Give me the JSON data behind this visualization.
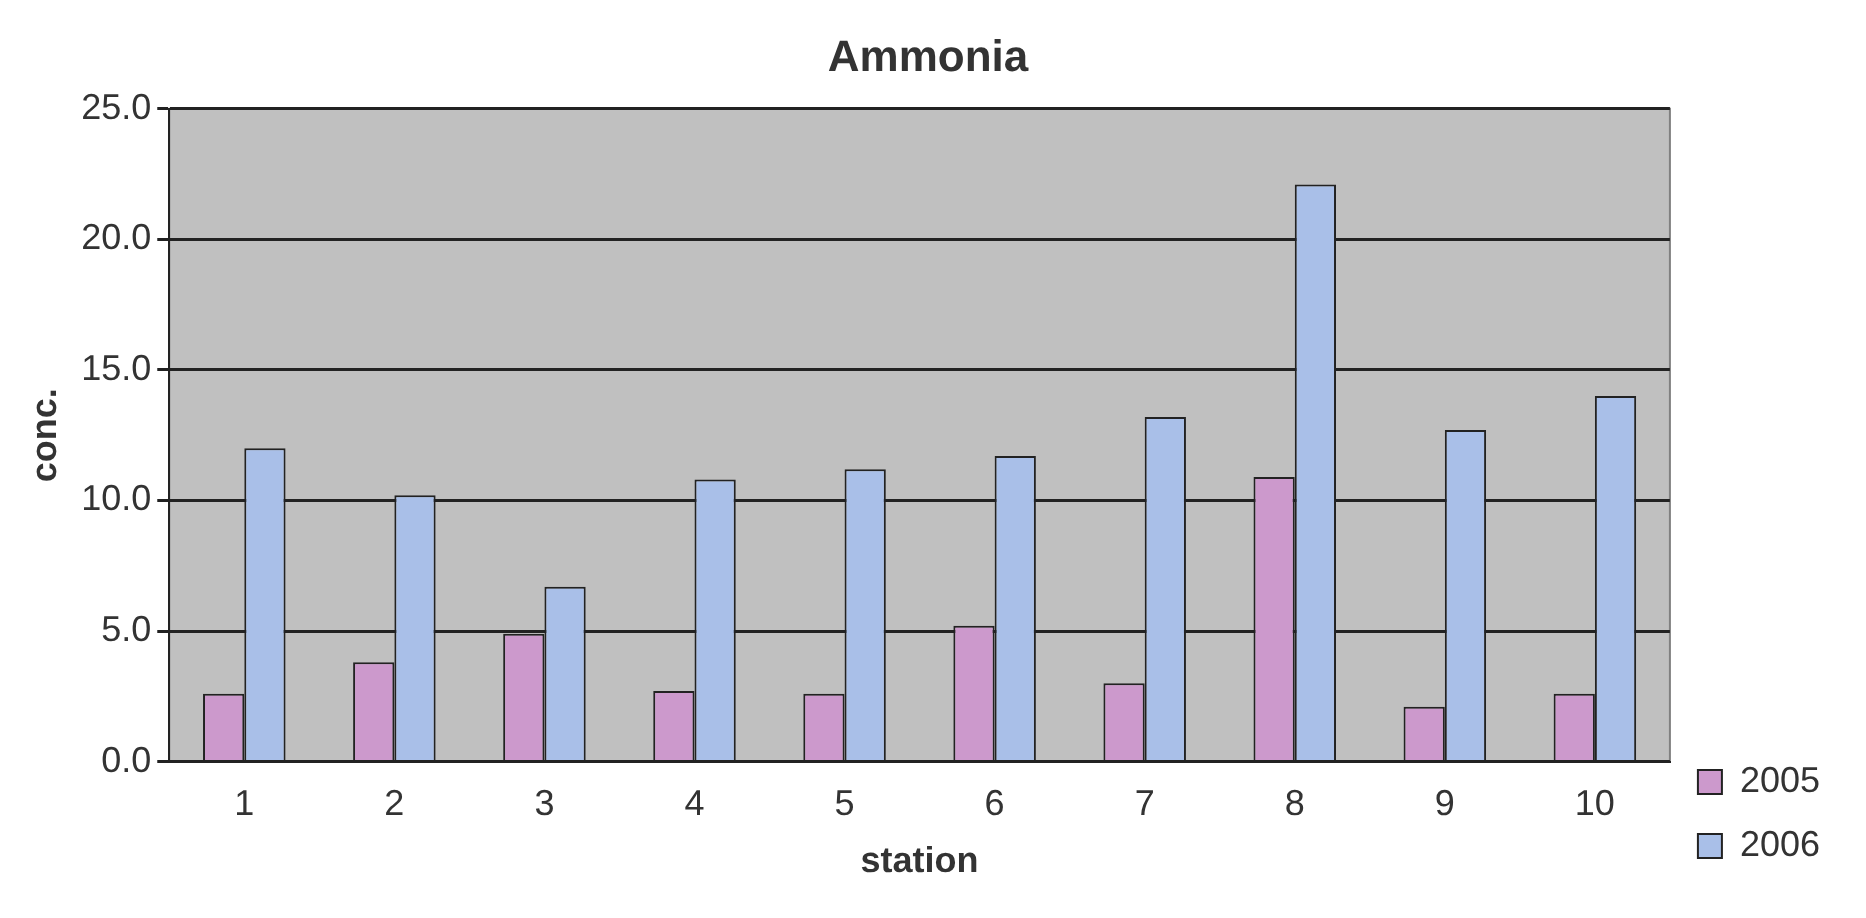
{
  "chart_data": {
    "type": "bar",
    "title": "Ammonia",
    "xlabel": "station",
    "ylabel": "conc.",
    "categories": [
      "1",
      "2",
      "3",
      "4",
      "5",
      "6",
      "7",
      "8",
      "9",
      "10"
    ],
    "series": [
      {
        "name": "2005",
        "color": "#cc99cc",
        "values": [
          2.6,
          3.8,
          4.9,
          2.7,
          2.6,
          5.2,
          3.0,
          10.9,
          2.1,
          2.6
        ]
      },
      {
        "name": "2006",
        "color": "#a9bfe8",
        "values": [
          12.0,
          10.2,
          6.7,
          10.8,
          11.2,
          11.7,
          13.2,
          22.1,
          12.7,
          14.0
        ]
      }
    ],
    "ylim": [
      0,
      25
    ],
    "yticks": [
      {
        "value": 0,
        "label": "0.0"
      },
      {
        "value": 5,
        "label": "5.0"
      },
      {
        "value": 10,
        "label": "10.0"
      },
      {
        "value": 15,
        "label": "15.0"
      },
      {
        "value": 20,
        "label": "20.0"
      },
      {
        "value": 25,
        "label": "25.0"
      }
    ],
    "grid": "y",
    "legend": "bottom right"
  }
}
